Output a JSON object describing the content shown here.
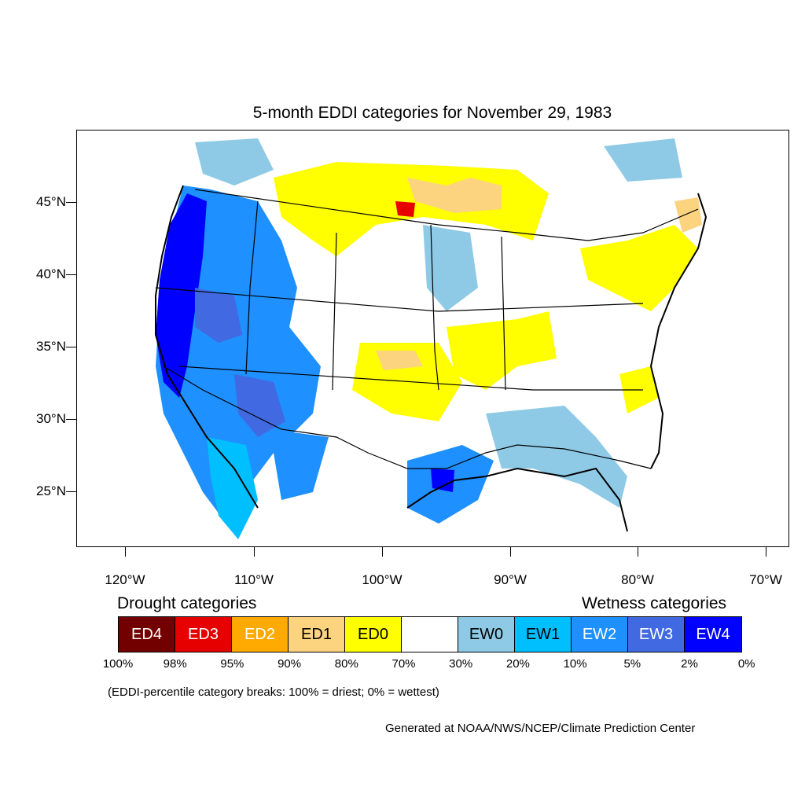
{
  "title": "5-month EDDI categories for November 29, 1983",
  "lat_labels": [
    "45°N",
    "40°N",
    "35°N",
    "30°N",
    "25°N"
  ],
  "lon_labels": [
    "120°W",
    "110°W",
    "100°W",
    "90°W",
    "80°W",
    "70°W"
  ],
  "drought_heading": "Drought categories",
  "wetness_heading": "Wetness categories",
  "legend": [
    {
      "label": "ED4",
      "color": "#730000",
      "text_color": "#ffffff"
    },
    {
      "label": "ED3",
      "color": "#e60000",
      "text_color": "#ffffff"
    },
    {
      "label": "ED2",
      "color": "#ffaa00",
      "text_color": "#ffffff"
    },
    {
      "label": "ED1",
      "color": "#fcd37f",
      "text_color": "#000000"
    },
    {
      "label": "ED0",
      "color": "#ffff00",
      "text_color": "#000000"
    },
    {
      "label": "",
      "color": "#ffffff",
      "text_color": "#000000"
    },
    {
      "label": "EW0",
      "color": "#8ecae6",
      "text_color": "#000000"
    },
    {
      "label": "EW1",
      "color": "#00bfff",
      "text_color": "#000000"
    },
    {
      "label": "EW2",
      "color": "#1e90ff",
      "text_color": "#ffffff"
    },
    {
      "label": "EW3",
      "color": "#4169e1",
      "text_color": "#ffffff"
    },
    {
      "label": "EW4",
      "color": "#0000ff",
      "text_color": "#ffffff"
    }
  ],
  "percent_breaks": [
    "100%",
    "98%",
    "95%",
    "90%",
    "80%",
    "70%",
    "30%",
    "20%",
    "10%",
    "5%",
    "2%",
    "0%"
  ],
  "note": "(EDDI-percentile category breaks: 100% = driest; 0% = wettest)",
  "credit": "Generated at NOAA/NWS/NCEP/Climate Prediction Center"
}
